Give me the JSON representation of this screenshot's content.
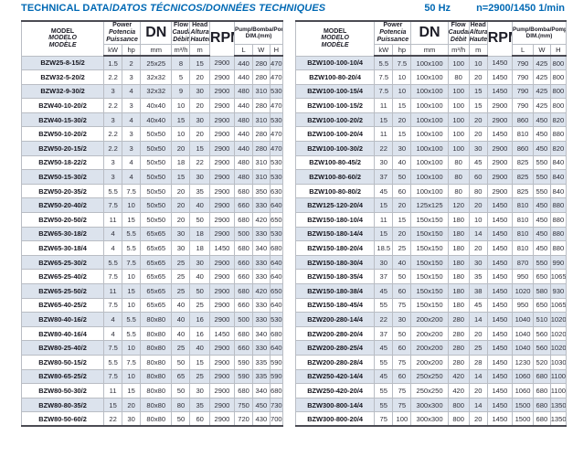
{
  "header": {
    "title_main": "TECHNICAL DATA/",
    "title_intl": "DATOS TÉCNICOS/DONNÉES TECHNIQUES",
    "frequency": "50 Hz",
    "speed": "n=2900/1450 1/min"
  },
  "columns": {
    "model": [
      "MODEL",
      "MODELO",
      "MODÈLE"
    ],
    "power": [
      "Power",
      "Potencia",
      "Puissance"
    ],
    "dn": "DN",
    "flow": [
      "Flow",
      "Caudal",
      "Débit"
    ],
    "head": [
      "Head",
      "Altura",
      "Hauteur"
    ],
    "rpm": "RPM",
    "pump_dim": [
      "Pump/Bomba/Pompe",
      "DIM.(mm)"
    ],
    "units": {
      "kw": "kW",
      "hp": "hp",
      "mm": "mm",
      "m3h": "m³/h",
      "m": "m",
      "l": "L",
      "w": "W",
      "h": "H"
    }
  },
  "left_rows": [
    [
      "BZW25-8-15/2",
      "1.5",
      "2",
      "25x25",
      "8",
      "15",
      "2900",
      "440",
      "280",
      "470"
    ],
    [
      "BZW32-5-20/2",
      "2.2",
      "3",
      "32x32",
      "5",
      "20",
      "2900",
      "440",
      "280",
      "470"
    ],
    [
      "BZW32-9-30/2",
      "3",
      "4",
      "32x32",
      "9",
      "30",
      "2900",
      "480",
      "310",
      "530"
    ],
    [
      "BZW40-10-20/2",
      "2.2",
      "3",
      "40x40",
      "10",
      "20",
      "2900",
      "440",
      "280",
      "470"
    ],
    [
      "BZW40-15-30/2",
      "3",
      "4",
      "40x40",
      "15",
      "30",
      "2900",
      "480",
      "310",
      "530"
    ],
    [
      "BZW50-10-20/2",
      "2.2",
      "3",
      "50x50",
      "10",
      "20",
      "2900",
      "440",
      "280",
      "470"
    ],
    [
      "BZW50-20-15/2",
      "2.2",
      "3",
      "50x50",
      "20",
      "15",
      "2900",
      "440",
      "280",
      "470"
    ],
    [
      "BZW50-18-22/2",
      "3",
      "4",
      "50x50",
      "18",
      "22",
      "2900",
      "480",
      "310",
      "530"
    ],
    [
      "BZW50-15-30/2",
      "3",
      "4",
      "50x50",
      "15",
      "30",
      "2900",
      "480",
      "310",
      "530"
    ],
    [
      "BZW50-20-35/2",
      "5.5",
      "7.5",
      "50x50",
      "20",
      "35",
      "2900",
      "680",
      "350",
      "630"
    ],
    [
      "BZW50-20-40/2",
      "7.5",
      "10",
      "50x50",
      "20",
      "40",
      "2900",
      "660",
      "330",
      "640"
    ],
    [
      "BZW50-20-50/2",
      "11",
      "15",
      "50x50",
      "20",
      "50",
      "2900",
      "680",
      "420",
      "650"
    ],
    [
      "BZW65-30-18/2",
      "4",
      "5.5",
      "65x65",
      "30",
      "18",
      "2900",
      "500",
      "330",
      "530"
    ],
    [
      "BZW65-30-18/4",
      "4",
      "5.5",
      "65x65",
      "30",
      "18",
      "1450",
      "680",
      "340",
      "680"
    ],
    [
      "BZW65-25-30/2",
      "5.5",
      "7.5",
      "65x65",
      "25",
      "30",
      "2900",
      "660",
      "330",
      "640"
    ],
    [
      "BZW65-25-40/2",
      "7.5",
      "10",
      "65x65",
      "25",
      "40",
      "2900",
      "660",
      "330",
      "640"
    ],
    [
      "BZW65-25-50/2",
      "11",
      "15",
      "65x65",
      "25",
      "50",
      "2900",
      "680",
      "420",
      "650"
    ],
    [
      "BZW65-40-25/2",
      "7.5",
      "10",
      "65x65",
      "40",
      "25",
      "2900",
      "660",
      "330",
      "640"
    ],
    [
      "BZW80-40-16/2",
      "4",
      "5.5",
      "80x80",
      "40",
      "16",
      "2900",
      "500",
      "330",
      "530"
    ],
    [
      "BZW80-40-16/4",
      "4",
      "5.5",
      "80x80",
      "40",
      "16",
      "1450",
      "680",
      "340",
      "680"
    ],
    [
      "BZW80-25-40/2",
      "7.5",
      "10",
      "80x80",
      "25",
      "40",
      "2900",
      "660",
      "330",
      "640"
    ],
    [
      "BZW80-50-15/2",
      "5.5",
      "7.5",
      "80x80",
      "50",
      "15",
      "2900",
      "590",
      "335",
      "590"
    ],
    [
      "BZW80-65-25/2",
      "7.5",
      "10",
      "80x80",
      "65",
      "25",
      "2900",
      "590",
      "335",
      "590"
    ],
    [
      "BZW80-50-30/2",
      "11",
      "15",
      "80x80",
      "50",
      "30",
      "2900",
      "680",
      "340",
      "680"
    ],
    [
      "BZW80-80-35/2",
      "15",
      "20",
      "80x80",
      "80",
      "35",
      "2900",
      "750",
      "450",
      "730"
    ],
    [
      "BZW80-50-60/2",
      "22",
      "30",
      "80x80",
      "50",
      "60",
      "2900",
      "720",
      "430",
      "700"
    ]
  ],
  "right_rows": [
    [
      "BZW100-100-10/4",
      "5.5",
      "7.5",
      "100x100",
      "100",
      "10",
      "1450",
      "790",
      "425",
      "800"
    ],
    [
      "BZW100-80-20/4",
      "7.5",
      "10",
      "100x100",
      "80",
      "20",
      "1450",
      "790",
      "425",
      "800"
    ],
    [
      "BZW100-100-15/4",
      "7.5",
      "10",
      "100x100",
      "100",
      "15",
      "1450",
      "790",
      "425",
      "800"
    ],
    [
      "BZW100-100-15/2",
      "11",
      "15",
      "100x100",
      "100",
      "15",
      "2900",
      "790",
      "425",
      "800"
    ],
    [
      "BZW100-100-20/2",
      "15",
      "20",
      "100x100",
      "100",
      "20",
      "2900",
      "860",
      "450",
      "820"
    ],
    [
      "BZW100-100-20/4",
      "11",
      "15",
      "100x100",
      "100",
      "20",
      "1450",
      "810",
      "450",
      "880"
    ],
    [
      "BZW100-100-30/2",
      "22",
      "30",
      "100x100",
      "100",
      "30",
      "2900",
      "860",
      "450",
      "820"
    ],
    [
      "BZW100-80-45/2",
      "30",
      "40",
      "100x100",
      "80",
      "45",
      "2900",
      "825",
      "550",
      "840"
    ],
    [
      "BZW100-80-60/2",
      "37",
      "50",
      "100x100",
      "80",
      "60",
      "2900",
      "825",
      "550",
      "840"
    ],
    [
      "BZW100-80-80/2",
      "45",
      "60",
      "100x100",
      "80",
      "80",
      "2900",
      "825",
      "550",
      "840"
    ],
    [
      "BZW125-120-20/4",
      "15",
      "20",
      "125x125",
      "120",
      "20",
      "1450",
      "810",
      "450",
      "880"
    ],
    [
      "BZW150-180-10/4",
      "11",
      "15",
      "150x150",
      "180",
      "10",
      "1450",
      "810",
      "450",
      "880"
    ],
    [
      "BZW150-180-14/4",
      "15",
      "20",
      "150x150",
      "180",
      "14",
      "1450",
      "810",
      "450",
      "880"
    ],
    [
      "BZW150-180-20/4",
      "18.5",
      "25",
      "150x150",
      "180",
      "20",
      "1450",
      "810",
      "450",
      "880"
    ],
    [
      "BZW150-180-30/4",
      "30",
      "40",
      "150x150",
      "180",
      "30",
      "1450",
      "870",
      "550",
      "990"
    ],
    [
      "BZW150-180-35/4",
      "37",
      "50",
      "150x150",
      "180",
      "35",
      "1450",
      "950",
      "650",
      "1065"
    ],
    [
      "BZW150-180-38/4",
      "45",
      "60",
      "150x150",
      "180",
      "38",
      "1450",
      "1020",
      "580",
      "930"
    ],
    [
      "BZW150-180-45/4",
      "55",
      "75",
      "150x150",
      "180",
      "45",
      "1450",
      "950",
      "650",
      "1065"
    ],
    [
      "BZW200-280-14/4",
      "22",
      "30",
      "200x200",
      "280",
      "14",
      "1450",
      "1040",
      "510",
      "1020"
    ],
    [
      "BZW200-280-20/4",
      "37",
      "50",
      "200x200",
      "280",
      "20",
      "1450",
      "1040",
      "560",
      "1020"
    ],
    [
      "BZW200-280-25/4",
      "45",
      "60",
      "200x200",
      "280",
      "25",
      "1450",
      "1040",
      "560",
      "1020"
    ],
    [
      "BZW200-280-28/4",
      "55",
      "75",
      "200x200",
      "280",
      "28",
      "1450",
      "1230",
      "520",
      "1030"
    ],
    [
      "BZW250-420-14/4",
      "45",
      "60",
      "250x250",
      "420",
      "14",
      "1450",
      "1060",
      "680",
      "1100"
    ],
    [
      "BZW250-420-20/4",
      "55",
      "75",
      "250x250",
      "420",
      "20",
      "1450",
      "1060",
      "680",
      "1100"
    ],
    [
      "BZW300-800-14/4",
      "55",
      "75",
      "300x300",
      "800",
      "14",
      "1450",
      "1500",
      "680",
      "1350"
    ],
    [
      "BZW300-800-20/4",
      "75",
      "100",
      "300x300",
      "800",
      "20",
      "1450",
      "1500",
      "680",
      "1350"
    ]
  ]
}
